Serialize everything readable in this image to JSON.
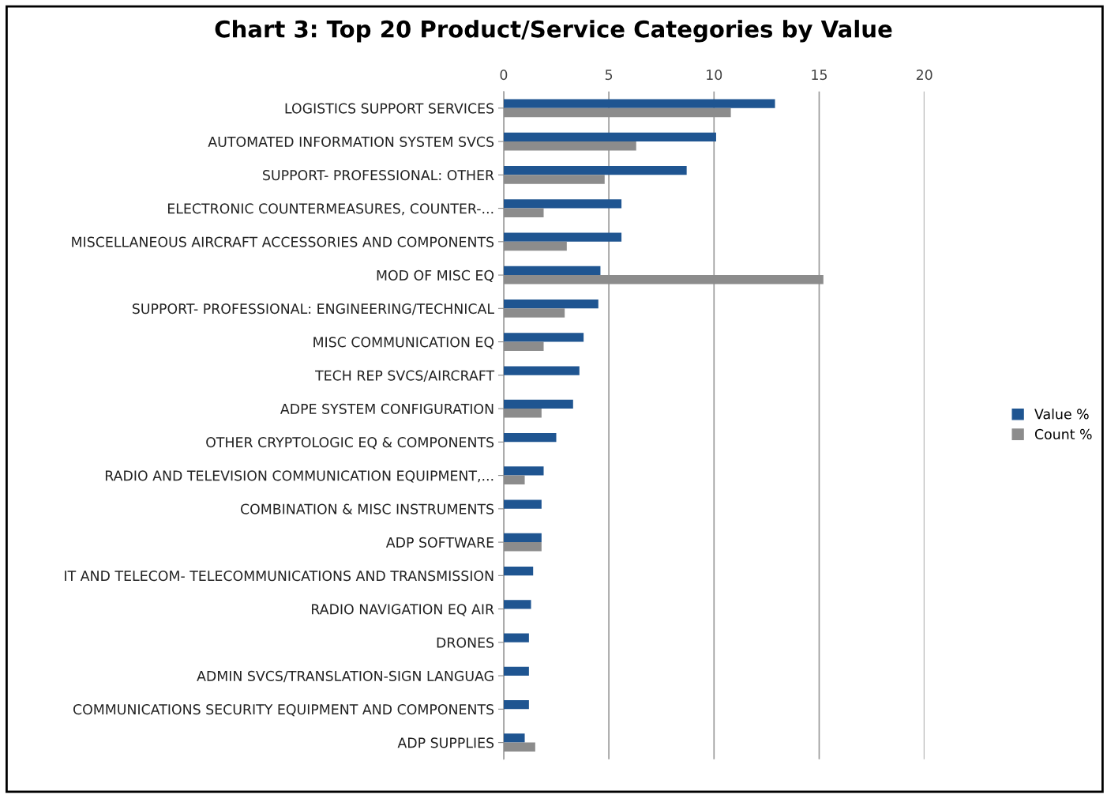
{
  "chart_data": {
    "type": "bar",
    "orientation": "horizontal",
    "title": "Chart 3: Top 20 Product/Service Categories by Value",
    "categories": [
      "LOGISTICS SUPPORT SERVICES",
      "AUTOMATED INFORMATION SYSTEM SVCS",
      "SUPPORT- PROFESSIONAL: OTHER",
      "ELECTRONIC COUNTERMEASURES, COUNTER-...",
      "MISCELLANEOUS AIRCRAFT ACCESSORIES AND COMPONENTS",
      "MOD OF MISC EQ",
      "SUPPORT- PROFESSIONAL: ENGINEERING/TECHNICAL",
      "MISC COMMUNICATION EQ",
      "TECH REP SVCS/AIRCRAFT",
      "ADPE SYSTEM CONFIGURATION",
      "OTHER CRYPTOLOGIC EQ & COMPONENTS",
      "RADIO AND TELEVISION COMMUNICATION EQUIPMENT,...",
      "COMBINATION & MISC INSTRUMENTS",
      "ADP SOFTWARE",
      "IT AND TELECOM- TELECOMMUNICATIONS AND TRANSMISSION",
      "RADIO NAVIGATION EQ AIR",
      "DRONES",
      "ADMIN SVCS/TRANSLATION-SIGN LANGUAG",
      "COMMUNICATIONS SECURITY EQUIPMENT AND COMPONENTS",
      "ADP SUPPLIES"
    ],
    "series": [
      {
        "name": "Value %",
        "color": "#1f5591",
        "values": [
          12.9,
          10.1,
          8.7,
          5.6,
          5.6,
          4.6,
          4.5,
          3.8,
          3.6,
          3.3,
          2.5,
          1.9,
          1.8,
          1.8,
          1.4,
          1.3,
          1.2,
          1.2,
          1.2,
          1.0
        ]
      },
      {
        "name": "Count %",
        "color": "#8c8c8c",
        "values": [
          10.8,
          6.3,
          4.8,
          1.9,
          3.0,
          15.2,
          2.9,
          1.9,
          null,
          1.8,
          null,
          1.0,
          null,
          1.8,
          null,
          null,
          null,
          null,
          null,
          1.5
        ]
      }
    ],
    "xlim": [
      0,
      20
    ],
    "xticks": [
      0,
      5,
      10,
      15,
      20
    ],
    "grid": "x",
    "legend": "right"
  }
}
